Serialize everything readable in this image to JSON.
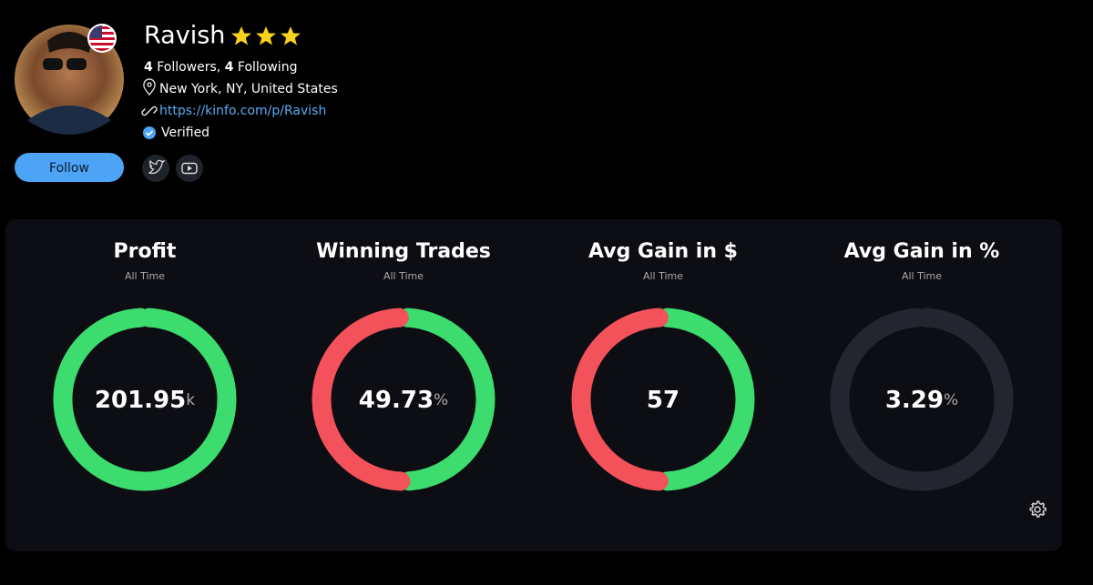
{
  "profile": {
    "name": "Ravish",
    "followers": "4",
    "followers_text": "Followers,",
    "following": "4",
    "following_text": "Following",
    "location": "New York, NY, United States",
    "link": "https://kinfo.com/p/Ravish",
    "verified": "Verified",
    "follow_button": "Follow"
  },
  "stats": [
    {
      "title": "Profit",
      "period": "All Time",
      "value": 201.95,
      "unit": "k"
    },
    {
      "title": "Winning Trades",
      "period": "All Time",
      "value": 49.73,
      "unit": "%"
    },
    {
      "title": "Avg Gain in $",
      "period": "All Time",
      "value": 57
    },
    {
      "title": "Avg Gain in %",
      "period": "All Time",
      "value": 3.29,
      "unit": "%"
    }
  ]
}
